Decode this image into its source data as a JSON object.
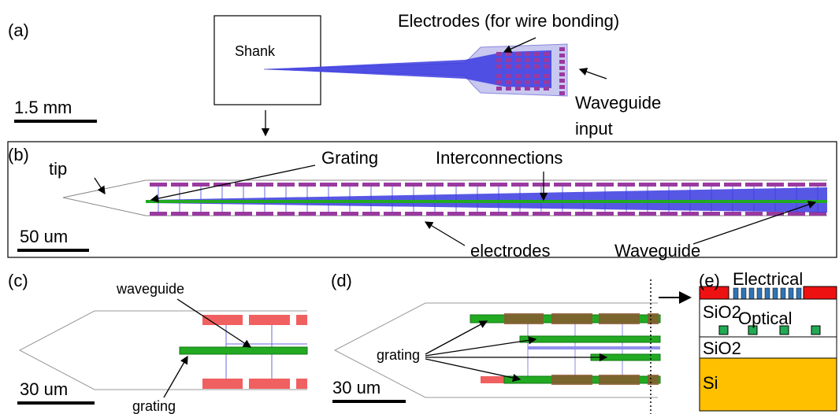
{
  "panel_a": {
    "label": "(a)",
    "shank": "Shank",
    "electrodes": "Electrodes (for wire bonding)",
    "waveguide_input": [
      "Waveguide",
      "input"
    ],
    "scale": "1.5 mm"
  },
  "panel_b": {
    "label": "(b)",
    "tip": "tip",
    "grating": "Grating",
    "interconnections": "Interconnections",
    "electrodes": "electrodes",
    "waveguide": "Waveguide",
    "scale": "50 um"
  },
  "panel_c": {
    "label": "(c)",
    "waveguide": "waveguide",
    "grating": "grating",
    "scale": "30 um"
  },
  "panel_d": {
    "label": "(d)",
    "grating": "grating",
    "scale": "30 um"
  },
  "panel_e": {
    "label": "(e)",
    "electrical": "Electrical",
    "sio2_top": "SiO2",
    "optical": "Optical",
    "sio2_bottom": "SiO2",
    "si": "Si"
  }
}
